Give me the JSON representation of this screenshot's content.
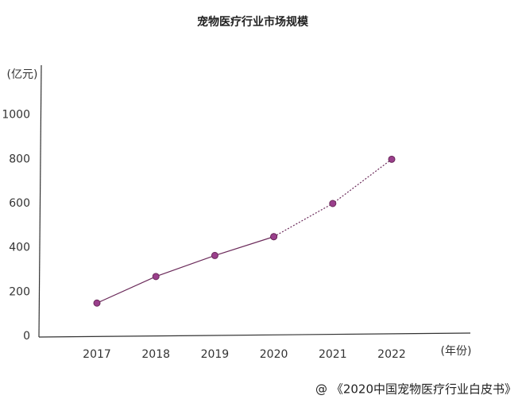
{
  "chart_data": {
    "type": "line",
    "title": "宠物医疗行业市场规模",
    "y_label": "(亿元)",
    "x_label": "(年份)",
    "source": "@ 《2020中国宠物医疗行业白皮书》",
    "categories": [
      "2017",
      "2018",
      "2019",
      "2020",
      "2021",
      "2022"
    ],
    "series": [
      {
        "color": "#6b2a5a",
        "line_style": "solid",
        "values": [
          150,
          270,
          365,
          450,
          null,
          null
        ]
      },
      {
        "color": "#6b2a5a",
        "line_style": "dotted",
        "values": [
          null,
          null,
          null,
          450,
          600,
          800
        ]
      }
    ],
    "marker_color": "#9a3f8c",
    "ylim": [
      0,
      1200
    ],
    "yticks": [
      0,
      200,
      400,
      600,
      800,
      1000
    ],
    "grid": false
  }
}
